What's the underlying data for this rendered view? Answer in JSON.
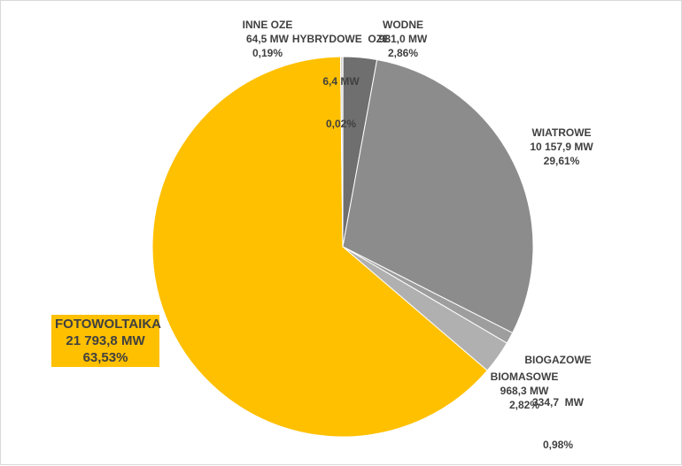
{
  "chart_data": {
    "type": "pie",
    "title": "",
    "unit": "MW",
    "slices": [
      {
        "name": "HYBRYDOWE  OZE",
        "value_label": "6,4 MW",
        "pct_label": "0,02%",
        "value": 6.4,
        "percent": 0.02,
        "color": "#7f7f7f"
      },
      {
        "name": "WODNE",
        "value_label": "981,0 MW",
        "pct_label": "2,86%",
        "value": 981.0,
        "percent": 2.86,
        "color": "#6f6f6f"
      },
      {
        "name": "WIATROWE",
        "value_label": "10 157,9 MW",
        "pct_label": "29,61%",
        "value": 10157.9,
        "percent": 29.61,
        "color": "#8c8c8c"
      },
      {
        "name": "BIOGAZOWE",
        "value_label": "334,7  MW",
        "pct_label": "0,98%",
        "value": 334.7,
        "percent": 0.98,
        "color": "#9e9e9e"
      },
      {
        "name": "BIOMASOWE",
        "value_label": "968,3 MW",
        "pct_label": "2,82%",
        "value": 968.3,
        "percent": 2.82,
        "color": "#b0b0b0"
      },
      {
        "name": "FOTOWOLTAIKA",
        "value_label": "21 793,8 MW",
        "pct_label": "63,53%",
        "value": 21793.8,
        "percent": 63.53,
        "color": "#ffc000"
      },
      {
        "name": "INNE OZE",
        "value_label": "64,5 MW",
        "pct_label": "0,19%",
        "value": 64.5,
        "percent": 0.19,
        "color": "#d0d0d0"
      }
    ]
  }
}
